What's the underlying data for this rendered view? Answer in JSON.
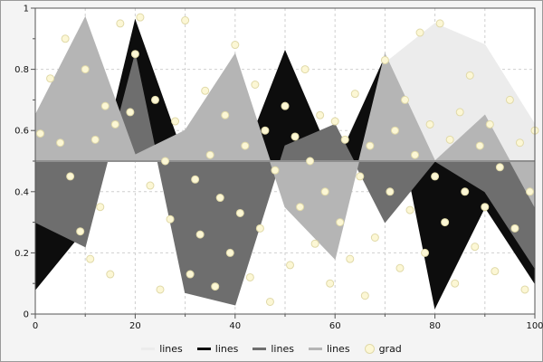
{
  "figure": {
    "background": "#f4f4f4",
    "plot_background": "#ffffff",
    "plot_border_color": "#555555",
    "grid_color": "#cfcfcf",
    "tick_color": "#111111",
    "baseline_color": "#8f8f8f"
  },
  "chart_data": {
    "type": "area",
    "title": "",
    "xlabel": "",
    "ylabel": "",
    "xlim": [
      0,
      100
    ],
    "ylim": [
      0,
      1
    ],
    "grid": true,
    "legend_position": "bottom",
    "baseline": 0.5,
    "x": [
      0,
      10,
      20,
      30,
      40,
      50,
      60,
      70,
      80,
      90,
      100
    ],
    "series": [
      {
        "name": "lines",
        "color": "#ececec",
        "values": [
          0.5,
          0.5,
          0.5,
          0.5,
          0.5,
          0.5,
          0.5,
          0.82,
          0.95,
          0.88,
          0.62
        ]
      },
      {
        "name": "lines",
        "color": "#0d0d0d",
        "values": [
          0.08,
          0.28,
          0.96,
          0.5,
          0.44,
          0.86,
          0.48,
          0.84,
          0.02,
          0.35,
          0.1
        ]
      },
      {
        "name": "lines",
        "color": "#6e6e6e",
        "values": [
          0.3,
          0.22,
          0.85,
          0.07,
          0.03,
          0.55,
          0.62,
          0.3,
          0.5,
          0.4,
          0.15
        ]
      },
      {
        "name": "lines",
        "color": "#b5b5b5",
        "values": [
          0.65,
          0.97,
          0.52,
          0.6,
          0.85,
          0.35,
          0.18,
          0.85,
          0.5,
          0.65,
          0.35
        ]
      }
    ],
    "scatter": {
      "name": "grad",
      "fill": "#fcf7d5",
      "edge": "#e0d9a8",
      "radius": 4,
      "points": [
        [
          1,
          0.59
        ],
        [
          3,
          0.77
        ],
        [
          5,
          0.56
        ],
        [
          6,
          0.9
        ],
        [
          7,
          0.45
        ],
        [
          9,
          0.27
        ],
        [
          10,
          0.8
        ],
        [
          11,
          0.18
        ],
        [
          12,
          0.57
        ],
        [
          13,
          0.35
        ],
        [
          14,
          0.68
        ],
        [
          15,
          0.13
        ],
        [
          16,
          0.62
        ],
        [
          17,
          0.95
        ],
        [
          19,
          0.66
        ],
        [
          20,
          0.85
        ],
        [
          21,
          0.97
        ],
        [
          23,
          0.42
        ],
        [
          24,
          0.7
        ],
        [
          25,
          0.08
        ],
        [
          26,
          0.5
        ],
        [
          27,
          0.31
        ],
        [
          28,
          0.63
        ],
        [
          30,
          0.96
        ],
        [
          31,
          0.13
        ],
        [
          32,
          0.44
        ],
        [
          33,
          0.26
        ],
        [
          34,
          0.73
        ],
        [
          35,
          0.52
        ],
        [
          36,
          0.09
        ],
        [
          37,
          0.38
        ],
        [
          38,
          0.65
        ],
        [
          39,
          0.2
        ],
        [
          40,
          0.88
        ],
        [
          41,
          0.33
        ],
        [
          42,
          0.55
        ],
        [
          43,
          0.12
        ],
        [
          44,
          0.75
        ],
        [
          45,
          0.28
        ],
        [
          46,
          0.6
        ],
        [
          47,
          0.04
        ],
        [
          48,
          0.47
        ],
        [
          50,
          0.68
        ],
        [
          51,
          0.16
        ],
        [
          52,
          0.58
        ],
        [
          53,
          0.35
        ],
        [
          54,
          0.8
        ],
        [
          55,
          0.5
        ],
        [
          56,
          0.23
        ],
        [
          57,
          0.65
        ],
        [
          58,
          0.4
        ],
        [
          59,
          0.1
        ],
        [
          60,
          0.63
        ],
        [
          61,
          0.3
        ],
        [
          62,
          0.57
        ],
        [
          63,
          0.18
        ],
        [
          64,
          0.72
        ],
        [
          65,
          0.45
        ],
        [
          66,
          0.06
        ],
        [
          67,
          0.55
        ],
        [
          68,
          0.25
        ],
        [
          70,
          0.83
        ],
        [
          71,
          0.4
        ],
        [
          72,
          0.6
        ],
        [
          73,
          0.15
        ],
        [
          74,
          0.7
        ],
        [
          75,
          0.34
        ],
        [
          76,
          0.52
        ],
        [
          77,
          0.92
        ],
        [
          78,
          0.2
        ],
        [
          79,
          0.62
        ],
        [
          80,
          0.45
        ],
        [
          81,
          0.95
        ],
        [
          82,
          0.3
        ],
        [
          83,
          0.57
        ],
        [
          84,
          0.1
        ],
        [
          85,
          0.66
        ],
        [
          86,
          0.4
        ],
        [
          87,
          0.78
        ],
        [
          88,
          0.22
        ],
        [
          89,
          0.55
        ],
        [
          90,
          0.35
        ],
        [
          91,
          0.62
        ],
        [
          92,
          0.14
        ],
        [
          93,
          0.48
        ],
        [
          95,
          0.7
        ],
        [
          96,
          0.28
        ],
        [
          97,
          0.56
        ],
        [
          98,
          0.08
        ],
        [
          99,
          0.4
        ],
        [
          100,
          0.6
        ]
      ]
    },
    "x_major_ticks": [
      0,
      20,
      40,
      60,
      80,
      100
    ],
    "x_major_labels": [
      "0",
      "20",
      "40",
      "60",
      "80",
      "100"
    ],
    "x_minor_ticks": [
      10,
      30,
      50,
      70,
      90
    ],
    "x_grid": [
      10,
      20,
      30,
      40,
      50,
      60,
      70,
      80,
      90
    ],
    "y_major_ticks": [
      0,
      0.2,
      0.4,
      0.6,
      0.8,
      1
    ],
    "y_major_labels": [
      "0",
      "0.2",
      "0.4",
      "0.6",
      "0.8",
      "1"
    ],
    "y_minor_ticks": [
      0.1,
      0.3,
      0.5,
      0.7,
      0.9
    ],
    "y_grid": [
      0.2,
      0.4,
      0.6,
      0.8
    ]
  },
  "legend": {
    "entries": [
      {
        "label": "lines",
        "type": "line",
        "color": "#ececec"
      },
      {
        "label": "lines",
        "type": "line",
        "color": "#0d0d0d"
      },
      {
        "label": "lines",
        "type": "line",
        "color": "#6e6e6e"
      },
      {
        "label": "lines",
        "type": "line",
        "color": "#b5b5b5"
      },
      {
        "label": "grad",
        "type": "marker",
        "color": "#fcf7d5",
        "edge": "#e0d9a8"
      }
    ]
  }
}
